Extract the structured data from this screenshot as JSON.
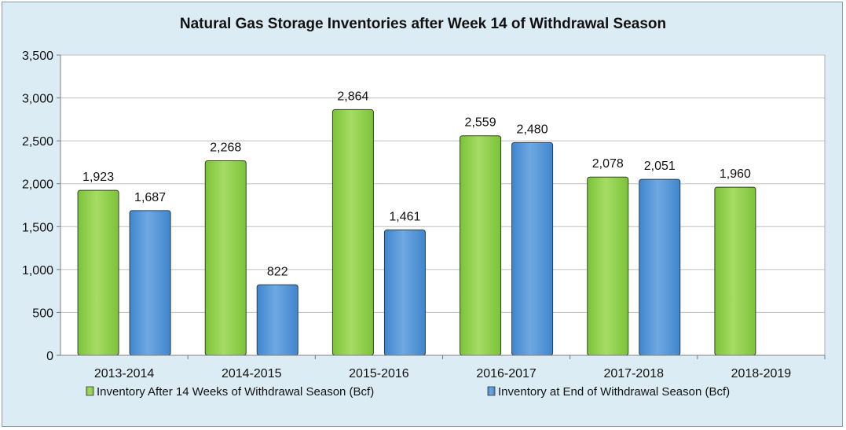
{
  "chart_data": {
    "type": "bar",
    "title": "Natural Gas Storage Inventories after Week 14 of Withdrawal Season",
    "xlabel": "",
    "ylabel": "",
    "ylim": [
      0,
      3500
    ],
    "yticks": [
      0,
      500,
      1000,
      1500,
      2000,
      2500,
      3000,
      3500
    ],
    "ytick_labels": [
      "0",
      "500",
      "1,000",
      "1,500",
      "2,000",
      "2,500",
      "3,000",
      "3,500"
    ],
    "grid": true,
    "legend_position": "bottom",
    "categories": [
      "2013-2014",
      "2014-2015",
      "2015-2016",
      "2016-2017",
      "2017-2018",
      "2018-2019"
    ],
    "series": [
      {
        "name": "Inventory After 14 Weeks of Withdrawal Season (Bcf)",
        "color": "#92d050",
        "values": [
          1923,
          2268,
          2864,
          2559,
          2078,
          1960
        ],
        "labels": [
          "1,923",
          "2,268",
          "2,864",
          "2,559",
          "2,078",
          "1,960"
        ]
      },
      {
        "name": "Inventory at End of Withdrawal Season (Bcf)",
        "color": "#5b9bd5",
        "values": [
          1687,
          822,
          1461,
          2480,
          2051,
          null
        ],
        "labels": [
          "1,687",
          "822",
          "1,461",
          "2,480",
          "2,051",
          null
        ]
      }
    ]
  }
}
